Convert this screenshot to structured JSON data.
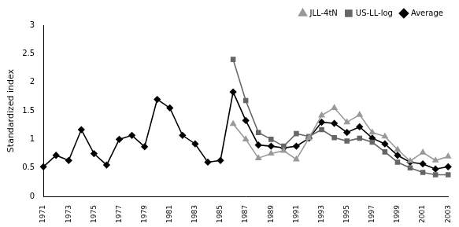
{
  "chart_data": {
    "type": "line",
    "y_label": "Standardized index",
    "categories": [
      "1971",
      null,
      "1973",
      null,
      "1975",
      null,
      "1977",
      null,
      "1979",
      null,
      "1981",
      null,
      "1983",
      null,
      "1985",
      null,
      "1987",
      null,
      "1989",
      null,
      "1991",
      null,
      "1993",
      null,
      "1995",
      null,
      "1997",
      null,
      "1999",
      null,
      "2001",
      null,
      "2003"
    ],
    "series": [
      {
        "name": "JLL-4tN",
        "color": "#999999",
        "marker": "triangle",
        "line_style": "solid",
        "values": [
          null,
          null,
          null,
          null,
          null,
          null,
          null,
          null,
          null,
          null,
          null,
          null,
          null,
          null,
          null,
          1.27,
          1.0,
          0.67,
          0.75,
          0.8,
          0.65,
          1.02,
          1.42,
          1.55,
          1.3,
          1.43,
          1.12,
          1.05,
          0.82,
          0.62,
          0.77,
          0.63,
          0.7
        ]
      },
      {
        "name": "US-LL-log",
        "color": "#666666",
        "marker": "square",
        "line_style": "solid",
        "values": [
          null,
          null,
          null,
          null,
          null,
          null,
          null,
          null,
          null,
          null,
          null,
          null,
          null,
          null,
          null,
          2.4,
          1.68,
          1.12,
          1.0,
          0.88,
          1.1,
          1.05,
          1.17,
          1.03,
          0.97,
          1.02,
          0.95,
          0.78,
          0.6,
          0.5,
          0.42,
          0.38,
          0.38
        ]
      },
      {
        "name": "Average",
        "color": "#000000",
        "marker": "diamond",
        "line_style": "solid",
        "values": [
          0.52,
          0.72,
          0.63,
          1.17,
          0.75,
          0.55,
          1.0,
          1.07,
          0.87,
          1.7,
          1.55,
          1.07,
          0.92,
          0.6,
          0.63,
          1.83,
          1.33,
          0.9,
          0.88,
          0.85,
          0.88,
          1.02,
          1.3,
          1.28,
          1.12,
          1.22,
          1.02,
          0.92,
          0.72,
          0.6,
          0.57,
          0.48,
          0.52
        ]
      }
    ],
    "ylim": [
      0,
      3
    ],
    "yticks": [
      0,
      0.5,
      1,
      1.5,
      2,
      2.5,
      3
    ],
    "grid": false,
    "legend": "top-right"
  }
}
